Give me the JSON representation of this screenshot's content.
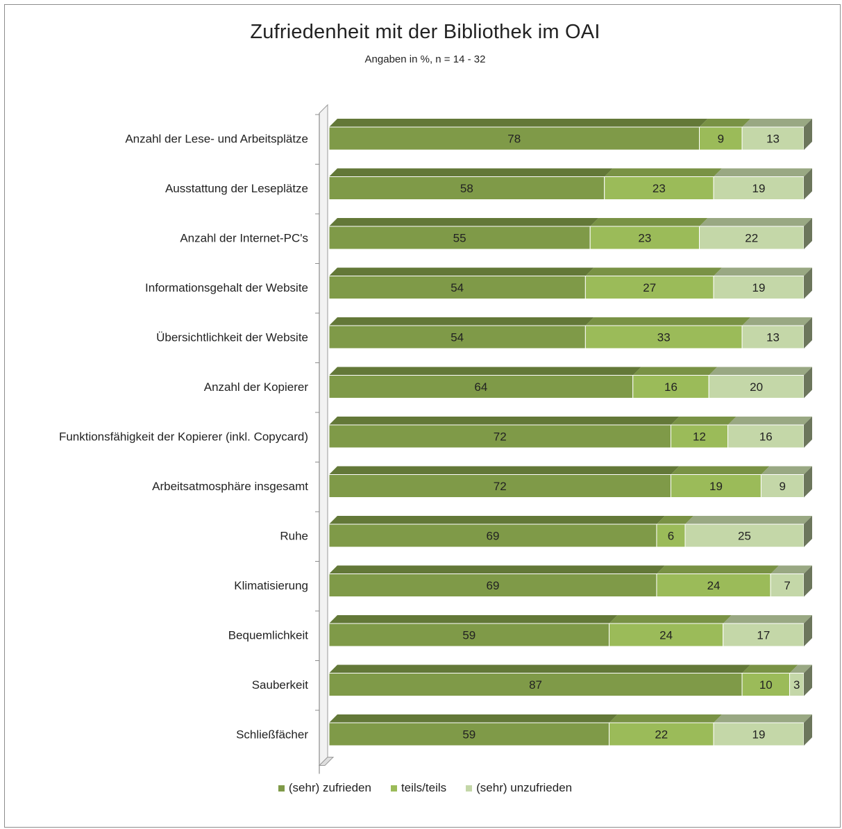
{
  "chart_data": {
    "type": "bar",
    "orientation": "horizontal",
    "stacked": true,
    "percent": true,
    "title": "Zufriedenheit mit der Bibliothek im OAI",
    "subtitle": "Angaben in %, n = 14 - 32",
    "legend_position": "bottom",
    "categories": [
      "Anzahl der Lese- und Arbeitsplätze",
      "Ausstattung der Leseplätze",
      "Anzahl der Internet-PC's",
      "Informationsgehalt der Website",
      "Übersichtlichkeit der Website",
      "Anzahl der Kopierer",
      "Funktionsfähigkeit der Kopierer (inkl. Copycard)",
      "Arbeitsatmosphäre insgesamt",
      "Ruhe",
      "Klimatisierung",
      "Bequemlichkeit",
      "Sauberkeit",
      "Schließfächer"
    ],
    "series": [
      {
        "name": "(sehr) zufrieden",
        "color": "#7f9a48",
        "values": [
          78,
          58,
          55,
          54,
          54,
          64,
          72,
          72,
          69,
          69,
          59,
          87,
          59
        ]
      },
      {
        "name": "teils/teils",
        "color": "#9bbb59",
        "values": [
          9,
          23,
          23,
          27,
          33,
          16,
          12,
          19,
          6,
          24,
          24,
          10,
          22
        ]
      },
      {
        "name": "(sehr) unzufrieden",
        "color": "#c4d7a8",
        "values": [
          13,
          19,
          22,
          19,
          13,
          20,
          16,
          9,
          25,
          7,
          17,
          3,
          19
        ]
      }
    ],
    "xlim": [
      0,
      100
    ]
  }
}
